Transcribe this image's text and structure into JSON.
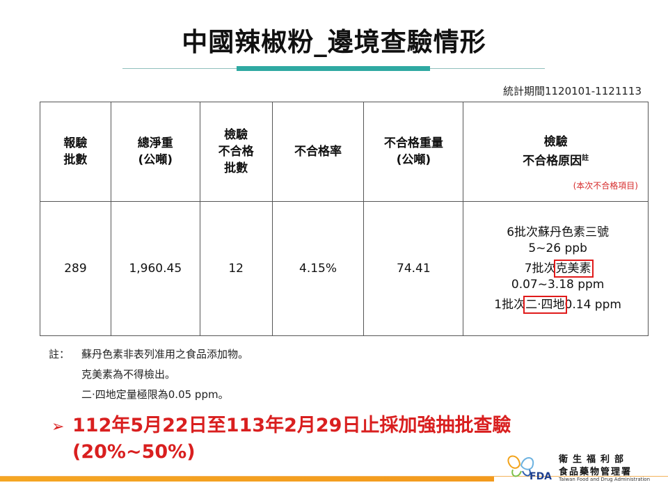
{
  "title": "中國辣椒粉_邊境查驗情形",
  "period": "統計期間1120101-1121113",
  "table": {
    "headers": [
      "報驗\n批數",
      "總淨重\n(公噸)",
      "檢驗\n不合格\n批數",
      "不合格率",
      "不合格重量\n(公噸)",
      "檢驗\n不合格原因"
    ],
    "header_note_mark": "註",
    "header_note": "(本次不合格項目)",
    "row": [
      "289",
      "1,960.45",
      "12",
      "4.15%",
      "74.41"
    ],
    "reasons": [
      {
        "pre": "6批次蘇丹色素三號",
        "boxed": "",
        "post": "",
        "line2": "5~26 ppb"
      },
      {
        "pre": "7批次",
        "boxed": "克美素",
        "post": "",
        "line2": "0.07~3.18 ppm"
      },
      {
        "pre": "1批次",
        "boxed": "二·四地",
        "post": "0.14 ppm",
        "line2": ""
      }
    ]
  },
  "notes": {
    "label": "註：",
    "lines": [
      "蘇丹色素非表列准用之食品添加物。",
      "克美素為不得檢出。",
      "二·四地定量極限為0.05 ppm。"
    ]
  },
  "highlight": {
    "arrow": "➢",
    "line1": "112年5月22日至113年2月29日止採加強抽批查驗",
    "line2": "(20%~50%)"
  },
  "logo": {
    "org_line1": "衛生福利部",
    "org_line2": "食品藥物管理署",
    "org_line3": "Taiwan Food and Drug Administration",
    "abbr": "FDA"
  },
  "colors": {
    "accent_teal": "#2fa9a2",
    "alert_red": "#d91f1f",
    "footer_orange": "#f5a623"
  }
}
